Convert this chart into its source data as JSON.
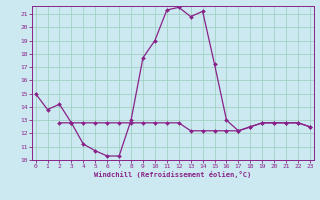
{
  "xlabel": "Windchill (Refroidissement éolien,°C)",
  "bg_color": "#cce8f0",
  "grid_color": "#99ccbb",
  "line_color": "#882288",
  "x_main": [
    0,
    1,
    2,
    3,
    4,
    5,
    6,
    7,
    8,
    9,
    10,
    11,
    12,
    13,
    14,
    15,
    16,
    17,
    18,
    19,
    20,
    21,
    22,
    23
  ],
  "y_main": [
    15.0,
    13.8,
    14.2,
    12.8,
    11.2,
    10.7,
    10.3,
    10.3,
    13.0,
    17.7,
    19.0,
    21.3,
    21.5,
    20.8,
    21.2,
    17.2,
    13.0,
    12.2,
    12.5,
    12.8,
    12.8,
    12.8,
    12.8,
    12.5
  ],
  "x_flat": [
    2,
    3,
    4,
    5,
    6,
    7,
    8,
    9,
    10,
    11,
    12,
    13,
    14,
    15,
    16,
    17,
    18,
    19,
    20,
    21,
    22,
    23
  ],
  "y_flat": [
    12.8,
    12.8,
    12.8,
    12.8,
    12.8,
    12.8,
    12.8,
    12.8,
    12.8,
    12.8,
    12.8,
    12.2,
    12.2,
    12.2,
    12.2,
    12.2,
    12.5,
    12.8,
    12.8,
    12.8,
    12.8,
    12.5
  ],
  "ylim": [
    10,
    21.6
  ],
  "xlim": [
    -0.3,
    23.3
  ],
  "yticks": [
    10,
    11,
    12,
    13,
    14,
    15,
    16,
    17,
    18,
    19,
    20,
    21
  ],
  "xticks": [
    0,
    1,
    2,
    3,
    4,
    5,
    6,
    7,
    8,
    9,
    10,
    11,
    12,
    13,
    14,
    15,
    16,
    17,
    18,
    19,
    20,
    21,
    22,
    23
  ]
}
